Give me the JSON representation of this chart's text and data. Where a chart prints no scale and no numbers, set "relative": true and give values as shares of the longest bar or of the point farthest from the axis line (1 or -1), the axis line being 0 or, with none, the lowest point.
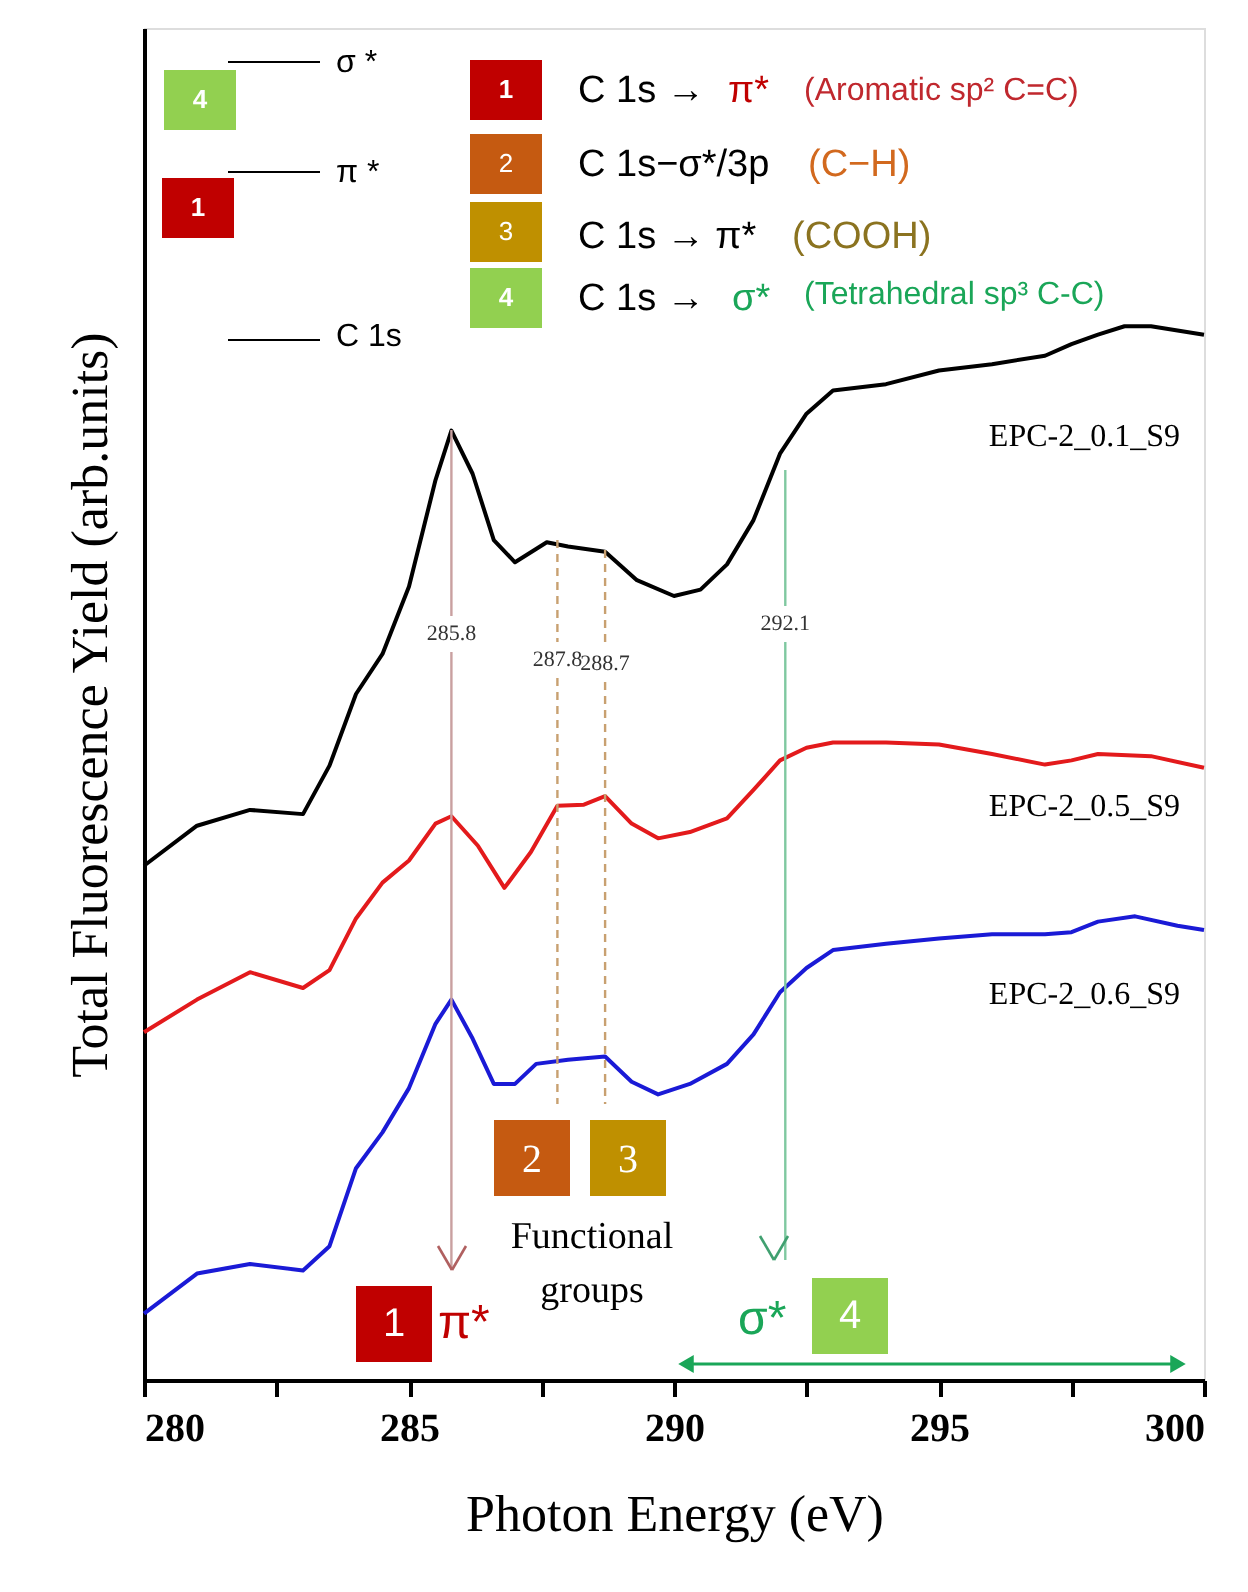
{
  "chart_data": {
    "type": "line",
    "relative": true,
    "xlabel": "Photon Energy (eV)",
    "ylabel": "Total Fluorescence Yield (arb.units)",
    "xlim": [
      280,
      300
    ],
    "xticks": [
      280,
      {
        "value": 282.5,
        "label": null
      },
      285,
      {
        "value": 287.5,
        "label": null
      },
      290,
      {
        "value": 292.5,
        "label": null
      },
      295,
      {
        "value": 297.5,
        "label": null
      },
      300
    ],
    "tick_labels": "x",
    "series": [
      {
        "name": "EPC-2_0.1_S9",
        "color": "#000000",
        "x": [
          280,
          281,
          282,
          283,
          283.5,
          284,
          284.5,
          285,
          285.5,
          285.8,
          286.2,
          286.6,
          287,
          287.6,
          288,
          288.7,
          289.3,
          290,
          290.5,
          291,
          291.5,
          292,
          292.5,
          293,
          294,
          295,
          296,
          297,
          297.5,
          298,
          298.5,
          299,
          299.5,
          300
        ],
        "values": [
          0.488,
          0.526,
          0.541,
          0.537,
          0.583,
          0.651,
          0.689,
          0.753,
          0.854,
          0.901,
          0.86,
          0.797,
          0.776,
          0.795,
          0.791,
          0.786,
          0.759,
          0.744,
          0.75,
          0.774,
          0.816,
          0.879,
          0.917,
          0.939,
          0.945,
          0.958,
          0.964,
          0.972,
          0.983,
          0.992,
          1,
          1,
          0.996,
          0.992
        ]
      },
      {
        "name": "EPC-2_0.5_S9",
        "color": "#e31a1c",
        "x": [
          280,
          281,
          282,
          283,
          283.5,
          284,
          284.5,
          285,
          285.5,
          285.8,
          286.3,
          286.8,
          287.3,
          287.8,
          288.3,
          288.7,
          289.2,
          289.7,
          290.3,
          291,
          291.5,
          292,
          292.5,
          293,
          294,
          295,
          296,
          297,
          297.5,
          298,
          299,
          300
        ],
        "values": [
          0.33,
          0.361,
          0.387,
          0.372,
          0.389,
          0.438,
          0.472,
          0.493,
          0.528,
          0.535,
          0.507,
          0.467,
          0.501,
          0.545,
          0.546,
          0.554,
          0.528,
          0.514,
          0.52,
          0.533,
          0.56,
          0.588,
          0.6,
          0.605,
          0.605,
          0.603,
          0.594,
          0.584,
          0.588,
          0.594,
          0.592,
          0.581
        ]
      },
      {
        "name": "EPC-2_0.6_S9",
        "color": "#1a1ad6",
        "x": [
          280,
          281,
          282,
          283,
          283.5,
          284,
          284.5,
          285,
          285.5,
          285.8,
          286.2,
          286.6,
          287,
          287.4,
          288,
          288.7,
          289.2,
          289.7,
          290.3,
          291,
          291.5,
          292,
          292.5,
          293,
          294,
          295,
          296,
          297,
          297.5,
          298,
          298.7,
          299.5,
          300
        ],
        "values": [
          0.063,
          0.101,
          0.11,
          0.104,
          0.127,
          0.201,
          0.235,
          0.277,
          0.338,
          0.361,
          0.324,
          0.281,
          0.281,
          0.3,
          0.304,
          0.307,
          0.283,
          0.271,
          0.281,
          0.3,
          0.328,
          0.368,
          0.391,
          0.408,
          0.414,
          0.419,
          0.423,
          0.423,
          0.425,
          0.435,
          0.44,
          0.431,
          0.427
        ]
      }
    ],
    "ref_lines": [
      {
        "axis": "x",
        "value": 285.8,
        "label": "285.8",
        "color": "#c9a0a0",
        "line_style": "solid"
      },
      {
        "axis": "x",
        "value": 287.8,
        "label": "287.8",
        "color": "#c8a070",
        "line_style": "dashed"
      },
      {
        "axis": "x",
        "value": 288.7,
        "label": "288.7",
        "color": "#c8a070",
        "line_style": "dashed"
      },
      {
        "axis": "x",
        "value": 292.1,
        "label": "292.1",
        "color": "#7fc8a0",
        "line_style": "solid"
      }
    ],
    "annotations": [
      "σ *",
      "π *",
      "C 1s",
      "4",
      "1",
      "1",
      "C 1s →",
      "π*",
      "(Aromatic sp² C=C)",
      "2",
      "C 1s−σ*/3p",
      "(C−H)",
      "3",
      "C 1s → π*",
      "(COOH)",
      "4",
      "C 1s →",
      "σ*",
      "(Tetrahedral sp³ C-C)",
      "2",
      "3",
      "Functional groups",
      "1",
      "π*",
      "σ*",
      "4"
    ]
  }
}
